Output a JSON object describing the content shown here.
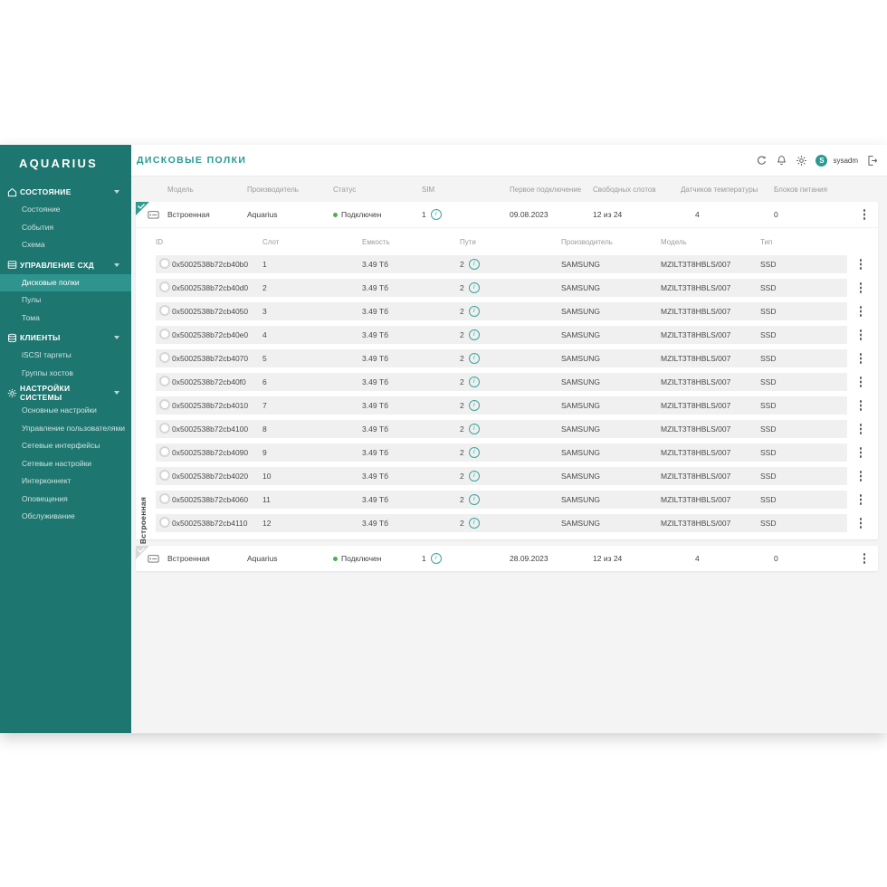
{
  "app": {
    "logo_text": "AQUARIUS"
  },
  "sidebar": {
    "sections": [
      {
        "label": "СОСТОЯНИЕ",
        "icon": "home-icon",
        "items": [
          "Состояние",
          "События",
          "Схема"
        ]
      },
      {
        "label": "УПРАВЛЕНИЕ СХД",
        "icon": "storage-shelves-icon",
        "items": [
          "Дисковые полки",
          "Пулы",
          "Тома"
        ],
        "selected": "Дисковые полки"
      },
      {
        "label": "КЛИЕНТЫ",
        "icon": "clients-stack-icon",
        "items": [
          "iSCSI таргеты",
          "Группы хостов"
        ]
      },
      {
        "label": "НАСТРОЙКИ СИСТЕМЫ",
        "icon": "gear-icon",
        "items": [
          "Основные настройки",
          "Управление пользователями",
          "Сетевые интерфейсы",
          "Сетевые настройки",
          "Интерконнект",
          "Оповещения",
          "Обслуживание"
        ]
      }
    ]
  },
  "header": {
    "title": "ДИСКОВЫЕ ПОЛКИ",
    "icons": [
      "refresh-icon",
      "bell-icon",
      "settings-gear-icon",
      "logout-icon"
    ],
    "user": {
      "initial": "S",
      "name": "sysadm"
    }
  },
  "shelf_table": {
    "columns": [
      "Модель",
      "Производитель",
      "Статус",
      "SIM",
      "Первое подключение",
      "Свободных слотов",
      "Датчиков температуры",
      "Блоков питания"
    ],
    "shelves": [
      {
        "model": "Встроенная",
        "vendor": "Aquarius",
        "status": "Подключен",
        "sim": "1",
        "first_connection": "09.08.2023",
        "free_slots": "12 из 24",
        "temperature_sensors": "4",
        "power_supplies": "0",
        "expanded": true
      },
      {
        "model": "Встроенная",
        "vendor": "Aquarius",
        "status": "Подключен",
        "sim": "1",
        "first_connection": "28.09.2023",
        "free_slots": "12 из 24",
        "temperature_sensors": "4",
        "power_supplies": "0",
        "expanded": false
      }
    ]
  },
  "disk_table": {
    "group_label": "Встроенная",
    "columns": [
      "ID",
      "Слот",
      "Емкость",
      "Пути",
      "Производитель",
      "Модель",
      "Тип"
    ],
    "rows": [
      {
        "id": "0x5002538b72cb40b0",
        "slot": "1",
        "capacity": "3.49 Тб",
        "paths": "2",
        "vendor": "SAMSUNG",
        "model": "MZILT3T8HBLS/007",
        "type": "SSD"
      },
      {
        "id": "0x5002538b72cb40d0",
        "slot": "2",
        "capacity": "3.49 Тб",
        "paths": "2",
        "vendor": "SAMSUNG",
        "model": "MZILT3T8HBLS/007",
        "type": "SSD"
      },
      {
        "id": "0x5002538b72cb4050",
        "slot": "3",
        "capacity": "3.49 Тб",
        "paths": "2",
        "vendor": "SAMSUNG",
        "model": "MZILT3T8HBLS/007",
        "type": "SSD"
      },
      {
        "id": "0x5002538b72cb40e0",
        "slot": "4",
        "capacity": "3.49 Тб",
        "paths": "2",
        "vendor": "SAMSUNG",
        "model": "MZILT3T8HBLS/007",
        "type": "SSD"
      },
      {
        "id": "0x5002538b72cb4070",
        "slot": "5",
        "capacity": "3.49 Тб",
        "paths": "2",
        "vendor": "SAMSUNG",
        "model": "MZILT3T8HBLS/007",
        "type": "SSD"
      },
      {
        "id": "0x5002538b72cb40f0",
        "slot": "6",
        "capacity": "3.49 Тб",
        "paths": "2",
        "vendor": "SAMSUNG",
        "model": "MZILT3T8HBLS/007",
        "type": "SSD"
      },
      {
        "id": "0x5002538b72cb4010",
        "slot": "7",
        "capacity": "3.49 Тб",
        "paths": "2",
        "vendor": "SAMSUNG",
        "model": "MZILT3T8HBLS/007",
        "type": "SSD"
      },
      {
        "id": "0x5002538b72cb4100",
        "slot": "8",
        "capacity": "3.49 Тб",
        "paths": "2",
        "vendor": "SAMSUNG",
        "model": "MZILT3T8HBLS/007",
        "type": "SSD"
      },
      {
        "id": "0x5002538b72cb4090",
        "slot": "9",
        "capacity": "3.49 Тб",
        "paths": "2",
        "vendor": "SAMSUNG",
        "model": "MZILT3T8HBLS/007",
        "type": "SSD"
      },
      {
        "id": "0x5002538b72cb4020",
        "slot": "10",
        "capacity": "3.49 Тб",
        "paths": "2",
        "vendor": "SAMSUNG",
        "model": "MZILT3T8HBLS/007",
        "type": "SSD"
      },
      {
        "id": "0x5002538b72cb4060",
        "slot": "11",
        "capacity": "3.49 Тб",
        "paths": "2",
        "vendor": "SAMSUNG",
        "model": "MZILT3T8HBLS/007",
        "type": "SSD"
      },
      {
        "id": "0x5002538b72cb4110",
        "slot": "12",
        "capacity": "3.49 Тб",
        "paths": "2",
        "vendor": "SAMSUNG",
        "model": "MZILT3T8HBLS/007",
        "type": "SSD"
      }
    ]
  },
  "colors": {
    "sidebar_bg": "#1e7670",
    "sidebar_selected": "#2f948e",
    "accent_teal": "#2a9a93",
    "status_green": "#4caf50",
    "info_icon_teal": "#3aa79e",
    "content_bg": "#f4f4f4",
    "row_strip": "#f0f0f0"
  }
}
